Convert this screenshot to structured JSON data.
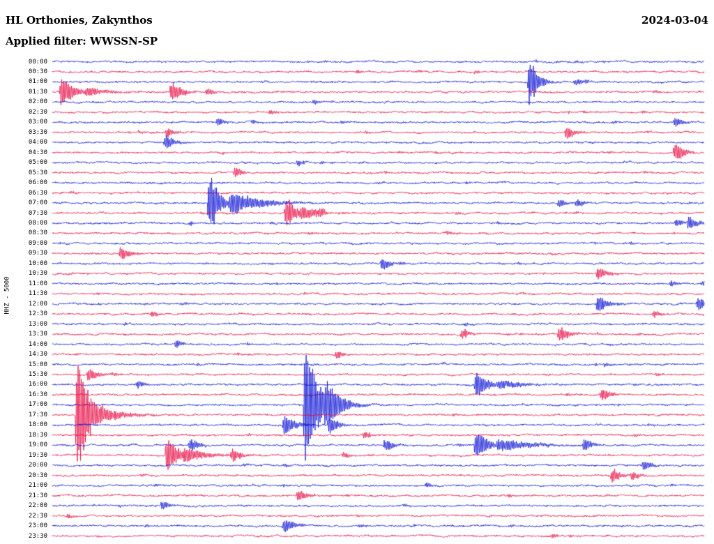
{
  "header": {
    "station_title": "HL Orthonies, Zakynthos",
    "date": "2024-03-04",
    "filter_label": "Applied filter: WWSSN-SP"
  },
  "axis": {
    "channel_label": "HHZ - 5000",
    "time_labels": [
      "00:00",
      "00:30",
      "01:00",
      "01:30",
      "02:00",
      "02:30",
      "03:00",
      "03:30",
      "04:00",
      "04:30",
      "05:00",
      "05:30",
      "06:00",
      "06:30",
      "07:00",
      "07:30",
      "08:00",
      "08:30",
      "09:00",
      "09:30",
      "10:00",
      "10:30",
      "11:00",
      "11:30",
      "12:00",
      "12:30",
      "13:00",
      "13:30",
      "14:00",
      "14:30",
      "15:00",
      "15:30",
      "16:00",
      "16:30",
      "17:00",
      "17:30",
      "18:00",
      "18:30",
      "19:00",
      "19:30",
      "20:00",
      "20:30",
      "21:00",
      "21:30",
      "22:00",
      "22:30",
      "23:00",
      "23:30"
    ]
  },
  "chart_data": {
    "type": "line",
    "title": "HL Orthonies, Zakynthos helicorder day plot",
    "rows": 48,
    "minutes_per_row": 30,
    "row_colors": [
      "#0009d2",
      "#e6003c"
    ],
    "row_color_rule": "even rows blue, odd rows red",
    "noise": {
      "base_amp": 1.6,
      "blips_per_row_max": 10
    },
    "events_format": [
      "row_index",
      "x_fraction_of_trace",
      "amplitude_px",
      "decay_px"
    ],
    "events": [
      [
        2,
        0.729,
        65,
        10
      ],
      [
        2,
        0.8,
        8,
        12
      ],
      [
        3,
        0.011,
        38,
        14
      ],
      [
        3,
        0.05,
        8,
        25
      ],
      [
        3,
        0.18,
        26,
        12
      ],
      [
        3,
        0.235,
        10,
        8
      ],
      [
        1,
        0.465,
        7,
        6
      ],
      [
        1,
        0.647,
        7,
        6
      ],
      [
        4,
        0.398,
        8,
        6
      ],
      [
        5,
        0.332,
        8,
        6
      ],
      [
        6,
        0.251,
        13,
        8
      ],
      [
        6,
        0.305,
        9,
        6
      ],
      [
        6,
        0.952,
        15,
        9
      ],
      [
        7,
        0.173,
        14,
        9
      ],
      [
        7,
        0.786,
        17,
        10
      ],
      [
        8,
        0.171,
        22,
        10
      ],
      [
        9,
        0.952,
        26,
        11
      ],
      [
        10,
        0.374,
        10,
        7
      ],
      [
        11,
        0.278,
        14,
        9
      ],
      [
        14,
        0.238,
        75,
        12
      ],
      [
        14,
        0.27,
        20,
        40
      ],
      [
        14,
        0.775,
        13,
        8
      ],
      [
        14,
        0.802,
        13,
        8
      ],
      [
        15,
        0.356,
        34,
        12
      ],
      [
        15,
        0.38,
        10,
        30
      ],
      [
        15,
        0.406,
        22,
        10
      ],
      [
        16,
        0.973,
        18,
        10
      ],
      [
        16,
        0.955,
        12,
        8
      ],
      [
        17,
        0.604,
        8,
        6
      ],
      [
        19,
        0.102,
        19,
        10
      ],
      [
        20,
        0.503,
        17,
        10
      ],
      [
        21,
        0.834,
        19,
        10
      ],
      [
        22,
        0.947,
        10,
        7
      ],
      [
        22,
        0.995,
        11,
        7
      ],
      [
        24,
        0.834,
        24,
        11
      ],
      [
        24,
        0.988,
        18,
        10
      ],
      [
        25,
        0.15,
        11,
        7
      ],
      [
        25,
        0.92,
        11,
        7
      ],
      [
        27,
        0.626,
        15,
        9
      ],
      [
        27,
        0.775,
        21,
        11
      ],
      [
        28,
        0.187,
        12,
        8
      ],
      [
        29,
        0.433,
        13,
        8
      ],
      [
        30,
        0.845,
        8,
        6
      ],
      [
        31,
        0.053,
        19,
        10
      ],
      [
        32,
        0.128,
        13,
        8
      ],
      [
        32,
        0.647,
        30,
        14
      ],
      [
        32,
        0.68,
        10,
        30
      ],
      [
        33,
        0.84,
        17,
        10
      ],
      [
        34,
        0.385,
        150,
        16
      ],
      [
        34,
        0.417,
        30,
        20
      ],
      [
        35,
        0.035,
        140,
        15
      ],
      [
        35,
        0.06,
        24,
        30
      ],
      [
        36,
        0.353,
        27,
        12
      ],
      [
        36,
        0.422,
        23,
        11
      ],
      [
        37,
        0.476,
        12,
        8
      ],
      [
        38,
        0.209,
        18,
        10
      ],
      [
        38,
        0.508,
        17,
        10
      ],
      [
        38,
        0.647,
        38,
        13
      ],
      [
        38,
        0.68,
        14,
        40
      ],
      [
        38,
        0.813,
        19,
        10
      ],
      [
        39,
        0.173,
        42,
        13
      ],
      [
        39,
        0.2,
        12,
        30
      ],
      [
        39,
        0.273,
        21,
        11
      ],
      [
        39,
        0.444,
        11,
        7
      ],
      [
        40,
        0.904,
        15,
        9
      ],
      [
        41,
        0.856,
        19,
        10
      ],
      [
        41,
        0.887,
        13,
        8
      ],
      [
        42,
        0.572,
        9,
        6
      ],
      [
        43,
        0.374,
        17,
        10
      ],
      [
        44,
        0.166,
        13,
        8
      ],
      [
        45,
        0.021,
        9,
        6
      ],
      [
        46,
        0.353,
        19,
        12
      ],
      [
        47,
        0.765,
        9,
        6
      ]
    ]
  }
}
